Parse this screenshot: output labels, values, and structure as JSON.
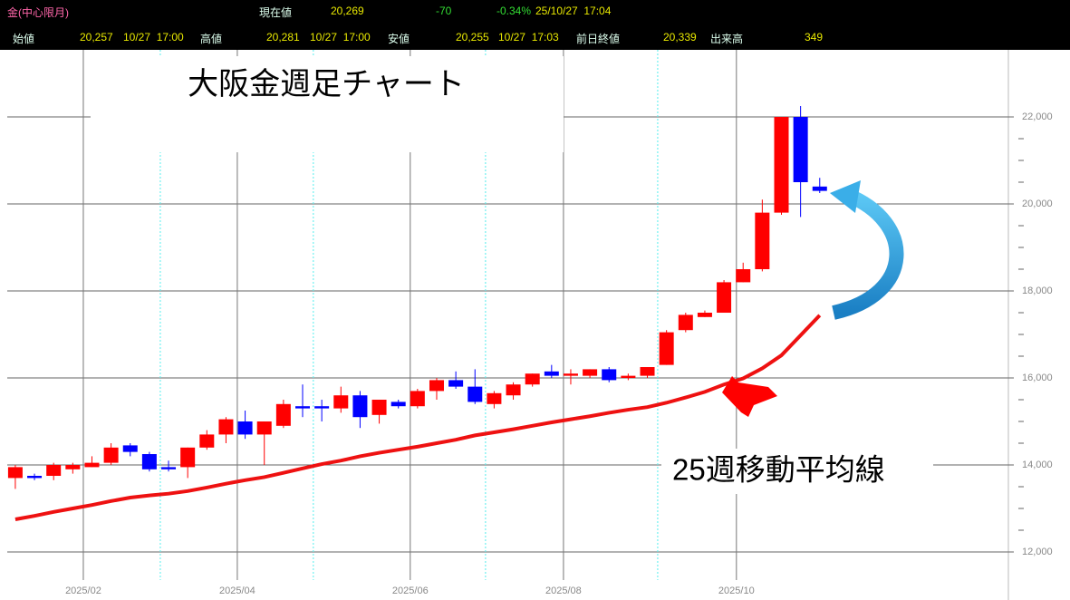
{
  "header": {
    "row1": {
      "symbol": "金(中心限月)",
      "current_label": "現在値",
      "current": "20,269",
      "change": "-70",
      "change_pct": "-0.34%",
      "datetime": "25/10/27  17:04"
    },
    "row2": {
      "open_label": "始値",
      "open": "20,257",
      "open_time": "10/27  17:00",
      "high_label": "高値",
      "high": "20,281",
      "high_time": "10/27  17:00",
      "low_label": "安値",
      "low": "20,255",
      "low_time": "10/27  17:03",
      "prev_label": "前日終値",
      "prev": "20,339",
      "volume_label": "出来高",
      "volume": "349"
    }
  },
  "chart_data": {
    "type": "candlestick",
    "title": "大阪金週足チャート",
    "categories": [
      null,
      null,
      null,
      null,
      null,
      null,
      null,
      null,
      null,
      null,
      null,
      null,
      null,
      null,
      null,
      null,
      null,
      null,
      null,
      null,
      null,
      null,
      null,
      null,
      null,
      null,
      null,
      null,
      null,
      null,
      null,
      null,
      null,
      null,
      null,
      null,
      null,
      null,
      null,
      null,
      null,
      null,
      null
    ],
    "open": [
      13700,
      13750,
      13750,
      13900,
      13950,
      14050,
      14450,
      14250,
      13950,
      13950,
      14400,
      14700,
      15000,
      14700,
      14900,
      15350,
      15350,
      15300,
      15600,
      15150,
      15450,
      15350,
      15700,
      15950,
      15800,
      15400,
      15600,
      15850,
      16150,
      16050,
      16050,
      16200,
      16000,
      16050,
      16300,
      17100,
      17400,
      17500,
      18200,
      18500,
      19800,
      22000,
      20400
    ],
    "high": [
      14000,
      13800,
      14050,
      14050,
      14200,
      14500,
      14500,
      14300,
      14100,
      14400,
      14800,
      15100,
      15250,
      15000,
      15500,
      15850,
      15500,
      15800,
      15700,
      15500,
      15500,
      15750,
      16000,
      16150,
      16200,
      15700,
      15900,
      16100,
      16300,
      16200,
      16200,
      16250,
      16100,
      16250,
      17100,
      17500,
      17550,
      18250,
      18650,
      20100,
      22000,
      22250,
      20600
    ],
    "low": [
      13450,
      13650,
      13650,
      13800,
      13950,
      14000,
      14200,
      13850,
      13850,
      13700,
      14350,
      14500,
      14600,
      14000,
      14850,
      15100,
      15000,
      15200,
      14850,
      14950,
      15300,
      15300,
      15500,
      15750,
      15400,
      15300,
      15500,
      15800,
      16000,
      15850,
      16000,
      15900,
      15950,
      16000,
      16300,
      17050,
      17400,
      17500,
      18200,
      18450,
      19750,
      19700,
      20250
    ],
    "close": [
      13950,
      13700,
      14000,
      14000,
      14050,
      14400,
      14300,
      13900,
      13900,
      14400,
      14700,
      15050,
      14700,
      15000,
      15400,
      15300,
      15300,
      15600,
      15100,
      15500,
      15350,
      15700,
      15950,
      15800,
      15450,
      15650,
      15850,
      16100,
      16050,
      16100,
      16200,
      15950,
      16050,
      16250,
      17050,
      17450,
      17500,
      18200,
      18500,
      19800,
      22000,
      20500,
      20300
    ],
    "up_color": "#ff0000",
    "down_color": "#0000ff",
    "series": [
      {
        "name": "25週移動平均線",
        "color": "#ee1111",
        "values": [
          12750,
          12830,
          12920,
          13000,
          13080,
          13170,
          13250,
          13300,
          13340,
          13400,
          13480,
          13570,
          13650,
          13720,
          13820,
          13920,
          14020,
          14100,
          14200,
          14280,
          14350,
          14420,
          14500,
          14580,
          14680,
          14750,
          14820,
          14900,
          14980,
          15050,
          15120,
          15200,
          15270,
          15330,
          15430,
          15550,
          15680,
          15850,
          15990,
          16220,
          16520,
          16980,
          17440
        ]
      }
    ],
    "xlim": [
      -0.8,
      51.85
    ],
    "xticks": [
      {
        "value": 3.55,
        "label": "2025/02"
      },
      {
        "value": 11.59,
        "label": "2025/04"
      },
      {
        "value": 20.62,
        "label": "2025/06"
      },
      {
        "value": 28.62,
        "label": "2025/08"
      },
      {
        "value": 37.65,
        "label": "2025/10"
      }
    ],
    "xminor": [
      7.57,
      15.56,
      24.55,
      33.54
    ],
    "ylim": [
      10896,
      23542
    ],
    "yticks": [
      {
        "value": 12000,
        "label": "12,000"
      },
      {
        "value": 14000,
        "label": "14,000"
      },
      {
        "value": 16000,
        "label": "16,000"
      },
      {
        "value": 18000,
        "label": "18,000"
      },
      {
        "value": 20000,
        "label": "20,000"
      },
      {
        "value": 22000,
        "label": "22,000"
      }
    ],
    "yminor": [
      12500,
      13000,
      13500,
      14500,
      15000,
      15500,
      16500,
      17000,
      17500,
      18500,
      19000,
      19500,
      20500,
      21000,
      21500
    ],
    "grid": true
  }
}
